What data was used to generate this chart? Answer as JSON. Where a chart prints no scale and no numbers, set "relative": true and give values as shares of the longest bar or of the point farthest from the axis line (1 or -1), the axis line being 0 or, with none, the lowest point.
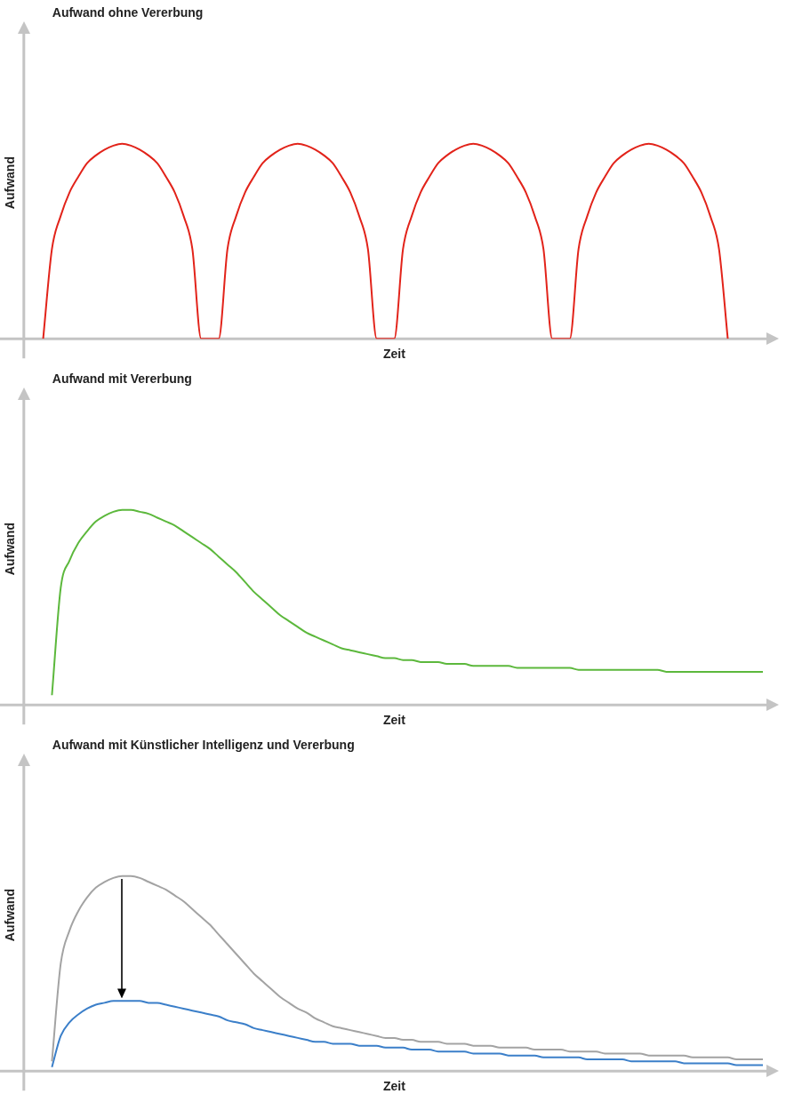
{
  "chart_data": [
    {
      "type": "line",
      "title": "Aufwand ohne Vererbung",
      "xlabel": "Zeit",
      "ylabel": "Aufwand",
      "relative": true,
      "marker": "none",
      "legend": false,
      "grid": false,
      "tick_labels": false,
      "categories": [
        null,
        null,
        null,
        null,
        null,
        null,
        null,
        null,
        null,
        null,
        null,
        null,
        null,
        null,
        null,
        null,
        null,
        null,
        null,
        null,
        null,
        null,
        null,
        null,
        null,
        null,
        null,
        null,
        null,
        null,
        null,
        null,
        null,
        null,
        null,
        null,
        null,
        null,
        null,
        null,
        null,
        null,
        null,
        null,
        null,
        null,
        null,
        null,
        null,
        null,
        null,
        null,
        null,
        null,
        null,
        null,
        null,
        null,
        null,
        null,
        null,
        null,
        null,
        null,
        null,
        null,
        null,
        null,
        null,
        null,
        null,
        null,
        null,
        null,
        null,
        null,
        null,
        null,
        null,
        null,
        null,
        null,
        null,
        null,
        null
      ],
      "series": [
        {
          "color": "#e2231a",
          "values": [
            null,
            null,
            0,
            0.46,
            0.63,
            0.75,
            0.83,
            0.9,
            0.94,
            0.97,
            0.99,
            1,
            0.99,
            0.97,
            0.94,
            0.9,
            0.83,
            0.75,
            0.63,
            0.46,
            0,
            0,
            0,
            0.46,
            0.63,
            0.75,
            0.83,
            0.9,
            0.94,
            0.97,
            0.99,
            1,
            0.99,
            0.97,
            0.94,
            0.9,
            0.83,
            0.75,
            0.63,
            0.46,
            0,
            0,
            0,
            0.46,
            0.63,
            0.75,
            0.83,
            0.9,
            0.94,
            0.97,
            0.99,
            1,
            0.99,
            0.97,
            0.94,
            0.9,
            0.83,
            0.75,
            0.63,
            0.46,
            0,
            0,
            0,
            0.46,
            0.63,
            0.75,
            0.83,
            0.9,
            0.94,
            0.97,
            0.99,
            1,
            0.99,
            0.97,
            0.94,
            0.9,
            0.83,
            0.75,
            0.63,
            0.46,
            0,
            null,
            null,
            null,
            null
          ]
        }
      ]
    },
    {
      "type": "line",
      "title": "Aufwand mit Vererbung",
      "xlabel": "Zeit",
      "ylabel": "Aufwand",
      "relative": true,
      "marker": "none",
      "legend": false,
      "grid": false,
      "tick_labels": false,
      "categories": [
        null,
        null,
        null,
        null,
        null,
        null,
        null,
        null,
        null,
        null,
        null,
        null,
        null,
        null,
        null,
        null,
        null,
        null,
        null,
        null,
        null,
        null,
        null,
        null,
        null,
        null,
        null,
        null,
        null,
        null,
        null,
        null,
        null,
        null,
        null,
        null,
        null,
        null,
        null,
        null,
        null,
        null,
        null,
        null,
        null,
        null,
        null,
        null,
        null,
        null,
        null,
        null,
        null,
        null,
        null,
        null,
        null,
        null,
        null,
        null,
        null,
        null,
        null,
        null,
        null,
        null,
        null,
        null,
        null,
        null,
        null,
        null,
        null,
        null,
        null,
        null,
        null,
        null,
        null,
        null,
        null,
        null,
        null,
        null,
        null
      ],
      "series": [
        {
          "color": "#5cb83c",
          "values": [
            null,
            null,
            null,
            0.05,
            0.6,
            0.74,
            0.83,
            0.89,
            0.94,
            0.97,
            0.99,
            1,
            1,
            0.99,
            0.98,
            0.96,
            0.94,
            0.92,
            0.89,
            0.86,
            0.83,
            0.8,
            0.76,
            0.72,
            0.68,
            0.63,
            0.58,
            0.54,
            0.5,
            0.46,
            0.43,
            0.4,
            0.37,
            0.35,
            0.33,
            0.31,
            0.29,
            0.28,
            0.27,
            0.26,
            0.25,
            0.24,
            0.24,
            0.23,
            0.23,
            0.22,
            0.22,
            0.22,
            0.21,
            0.21,
            0.21,
            0.2,
            0.2,
            0.2,
            0.2,
            0.2,
            0.19,
            0.19,
            0.19,
            0.19,
            0.19,
            0.19,
            0.19,
            0.18,
            0.18,
            0.18,
            0.18,
            0.18,
            0.18,
            0.18,
            0.18,
            0.18,
            0.18,
            0.17,
            0.17,
            0.17,
            0.17,
            0.17,
            0.17,
            0.17,
            0.17,
            0.17,
            0.17,
            0.17,
            0.17
          ]
        }
      ]
    },
    {
      "type": "line",
      "title": "Aufwand mit Künstlicher Intelligenz und Vererbung",
      "xlabel": "Zeit",
      "ylabel": "Aufwand",
      "relative": true,
      "marker": "none",
      "legend": false,
      "grid": false,
      "tick_labels": false,
      "categories": [
        null,
        null,
        null,
        null,
        null,
        null,
        null,
        null,
        null,
        null,
        null,
        null,
        null,
        null,
        null,
        null,
        null,
        null,
        null,
        null,
        null,
        null,
        null,
        null,
        null,
        null,
        null,
        null,
        null,
        null,
        null,
        null,
        null,
        null,
        null,
        null,
        null,
        null,
        null,
        null,
        null,
        null,
        null,
        null,
        null,
        null,
        null,
        null,
        null,
        null,
        null,
        null,
        null,
        null,
        null,
        null,
        null,
        null,
        null,
        null,
        null,
        null,
        null,
        null,
        null,
        null,
        null,
        null,
        null,
        null,
        null,
        null,
        null,
        null,
        null,
        null,
        null,
        null,
        null,
        null,
        null,
        null,
        null,
        null,
        null
      ],
      "series": [
        {
          "color": "#a3a3a3",
          "values": [
            null,
            null,
            null,
            0.05,
            0.55,
            0.72,
            0.82,
            0.89,
            0.94,
            0.97,
            0.99,
            1,
            1,
            0.99,
            0.97,
            0.95,
            0.93,
            0.9,
            0.87,
            0.83,
            0.79,
            0.75,
            0.7,
            0.65,
            0.6,
            0.55,
            0.5,
            0.46,
            0.42,
            0.38,
            0.35,
            0.32,
            0.3,
            0.27,
            0.25,
            0.23,
            0.22,
            0.21,
            0.2,
            0.19,
            0.18,
            0.17,
            0.17,
            0.16,
            0.16,
            0.15,
            0.15,
            0.15,
            0.14,
            0.14,
            0.14,
            0.13,
            0.13,
            0.13,
            0.12,
            0.12,
            0.12,
            0.12,
            0.11,
            0.11,
            0.11,
            0.11,
            0.1,
            0.1,
            0.1,
            0.1,
            0.09,
            0.09,
            0.09,
            0.09,
            0.09,
            0.08,
            0.08,
            0.08,
            0.08,
            0.08,
            0.07,
            0.07,
            0.07,
            0.07,
            0.07,
            0.06,
            0.06,
            0.06,
            0.06
          ]
        },
        {
          "color": "#3b7fc9",
          "values": [
            null,
            null,
            null,
            0.02,
            0.18,
            0.25,
            0.29,
            0.32,
            0.34,
            0.35,
            0.36,
            0.36,
            0.36,
            0.36,
            0.35,
            0.35,
            0.34,
            0.33,
            0.32,
            0.31,
            0.3,
            0.29,
            0.28,
            0.26,
            0.25,
            0.24,
            0.22,
            0.21,
            0.2,
            0.19,
            0.18,
            0.17,
            0.16,
            0.15,
            0.15,
            0.14,
            0.14,
            0.14,
            0.13,
            0.13,
            0.13,
            0.12,
            0.12,
            0.12,
            0.11,
            0.11,
            0.11,
            0.1,
            0.1,
            0.1,
            0.1,
            0.09,
            0.09,
            0.09,
            0.09,
            0.08,
            0.08,
            0.08,
            0.08,
            0.07,
            0.07,
            0.07,
            0.07,
            0.07,
            0.06,
            0.06,
            0.06,
            0.06,
            0.06,
            0.05,
            0.05,
            0.05,
            0.05,
            0.05,
            0.05,
            0.04,
            0.04,
            0.04,
            0.04,
            0.04,
            0.04,
            0.03,
            0.03,
            0.03,
            0.03
          ]
        }
      ]
    }
  ]
}
